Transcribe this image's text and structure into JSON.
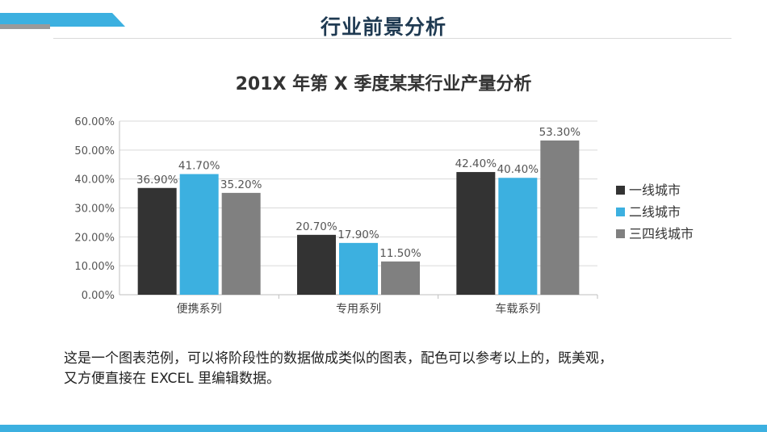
{
  "page": {
    "title": "行业前景分析",
    "description_line1": "这是一个图表范例，可以将阶段性的数据做成类似的图表，配色可以参考以上的，既美观，",
    "description_line2": "又方便直接在 EXCEL 里编辑数据。"
  },
  "colors": {
    "accent": "#3cb0e0",
    "series1": "#333333",
    "series2": "#3cb0e0",
    "series3": "#808080"
  },
  "chart_data": {
    "type": "bar",
    "title": "201X 年第 X 季度某某行业产量分析",
    "categories": [
      "便携系列",
      "专用系列",
      "车载系列"
    ],
    "series": [
      {
        "name": "一线城市",
        "values": [
          36.9,
          20.7,
          42.4
        ],
        "labels": [
          "36.90%",
          "20.70%",
          "42.40%"
        ]
      },
      {
        "name": "二线城市",
        "values": [
          41.7,
          17.9,
          40.4
        ],
        "labels": [
          "41.70%",
          "17.90%",
          "40.40%"
        ]
      },
      {
        "name": "三四线城市",
        "values": [
          35.2,
          11.5,
          53.3
        ],
        "labels": [
          "35.20%",
          "11.50%",
          "53.30%"
        ]
      }
    ],
    "yticks": [
      "0.00%",
      "10.00%",
      "20.00%",
      "30.00%",
      "40.00%",
      "50.00%",
      "60.00%"
    ],
    "ylim": [
      0,
      60
    ],
    "xlabel": "",
    "ylabel": "",
    "grid": true,
    "legend": "right"
  }
}
